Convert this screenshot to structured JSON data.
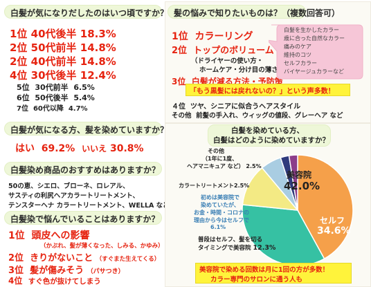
{
  "q1": {
    "question": "白髪が気になりだしたのはいつ頃ですか？",
    "top": [
      {
        "rank": "1位",
        "age": "40代後半",
        "pct": "18.3%"
      },
      {
        "rank": "2位",
        "age": "50代前半",
        "pct": "14.8%"
      },
      {
        "rank": "2位",
        "age": "40代前半",
        "pct": "14.8%"
      },
      {
        "rank": "4位",
        "age": "30代後半",
        "pct": "12.4%"
      }
    ],
    "rest": [
      {
        "rank": "5位",
        "age": "30代前半",
        "pct": "6.5%"
      },
      {
        "rank": "6位",
        "age": "50代後半",
        "pct": "5.4%"
      },
      {
        "rank": "7位",
        "age": "60代以降",
        "pct": "4.7%"
      }
    ]
  },
  "q2": {
    "question": "白髪が気になる方、髪を染めていますか？",
    "yes_label": "はい",
    "yes_pct": "69.2%",
    "no_label": "いいえ",
    "no_pct": "30.8%"
  },
  "q3": {
    "question": "白髪染め商品のおすすめはありますか？",
    "lines": [
      "50の恵、シエロ、ブローネ、ロレアル、",
      "サスティの利尻ヘアカラートリートメント、",
      "テンスターヘナ カラートリートメント、WELLA など"
    ]
  },
  "q4": {
    "question": "白髪染で悩んでいることはありますか？",
    "items": [
      {
        "rank": "1位",
        "text": "頭皮への影響",
        "sub": "（かぶれ、髪が薄くなった、しみる、かゆみ）"
      },
      {
        "rank": "2位",
        "text": "きりがないこと",
        "sub": "（すぐまた生えてくる）"
      },
      {
        "rank": "3位",
        "text": "髪が傷みそう",
        "sub": "（パサつき）"
      },
      {
        "rank": "4位",
        "text": "すぐ色が抜けてしまう",
        "sub": ""
      }
    ]
  },
  "q5": {
    "question": "髪の悩みで知りたいものは？（複数回答可）",
    "r1_rank": "1位",
    "r1_text": "カラーリング",
    "r2_rank": "2位",
    "r2_text": "トップのボリューム",
    "r2_sub1": "（ドライヤーの使い方・",
    "r2_sub2": "ホームケア・分け目の薄さ）",
    "r3_rank": "3位",
    "r3_text": "白髪が減る方法・予防策",
    "bubble": [
      "白髪を生かしたカラー",
      "歳に合った自然なカラー",
      "痛みのケア",
      "維持のコツ",
      "セルフカラー",
      "バイヤージュカラーなど"
    ],
    "callout": "「もう黒髪には戻れないの？」という声多数！",
    "r4_rank": "４位",
    "r4_text": "ツヤ、シニアに似合うヘアスタイル",
    "other_label": "その他",
    "other_text": "前髪の手入れ、ウィッグの値段、グレーヘア など"
  },
  "q6": {
    "question_line1": "白髪を染めている方、",
    "question_line2": "白髪はどのように染めていますか？",
    "note_salon": "美容院で染める回数は月に1回の方が多数！",
    "note_salon2": "カラー専門のサロンに通う人も"
  },
  "chart_data": {
    "type": "pie",
    "title": "",
    "slices": [
      {
        "label": "美容院",
        "value": 42.0,
        "value_label": "42.0%",
        "color": "#f5a04a"
      },
      {
        "label": "セルフ",
        "value": 34.6,
        "value_label": "34.6%",
        "color": "#36c1a3"
      },
      {
        "label": "普段はセルフ、髪を切るタイミングで美容院",
        "value": 12.3,
        "value_label": "12.3%",
        "color": "#f3ea84"
      },
      {
        "label": "初めは美容院で染めていたが、お金・時間・コロナの理由から今はセルフで",
        "value": 6.1,
        "value_label": "6.1%",
        "color": "#a9cde2"
      },
      {
        "label": "カラートリートメント",
        "value": 2.5,
        "value_label": "2.5%",
        "color": "#2f3b7c"
      },
      {
        "label": "その他（1年に1度、ヘアマニキュア など）",
        "value": 2.5,
        "value_label": "2.5%",
        "color": "#8c3d8a"
      }
    ],
    "labels": {
      "salon": "美容院",
      "salon_pct": "42.0%",
      "self": "セルフ",
      "self_pct": "34.6%",
      "sometimes_1": "普段はセルフ、髪を切る",
      "sometimes_2": "タイミングで美容院",
      "sometimes_pct": "12.3%",
      "first_1": "初めは美容院で",
      "first_2": "染めていたが、",
      "first_3": "お金・時間・コロナの",
      "first_4": "理由から今はセルフで",
      "first_pct": "6.1%",
      "treat": "カラートリートメント",
      "treat_pct": "2.5%",
      "other_1": "その他",
      "other_2": "（1年に1度、",
      "other_3": "ヘアマニキュア など）",
      "other_pct": "2.5%"
    }
  }
}
